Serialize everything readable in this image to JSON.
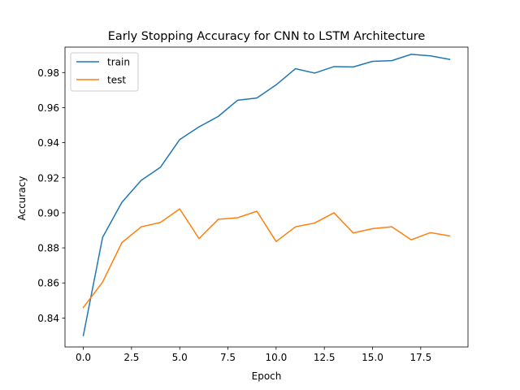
{
  "chart_data": {
    "type": "line",
    "title": "Early Stopping Accuracy for CNN to LSTM Architecture",
    "xlabel": "Epoch",
    "ylabel": "Accuracy",
    "x": [
      0,
      1,
      2,
      3,
      4,
      5,
      6,
      7,
      8,
      9,
      10,
      11,
      12,
      13,
      14,
      15,
      16,
      17,
      18,
      19
    ],
    "xlim": [
      -0.95,
      19.95
    ],
    "ylim": [
      0.8235,
      0.9945
    ],
    "xticks": [
      0.0,
      2.5,
      5.0,
      7.5,
      10.0,
      12.5,
      15.0,
      17.5
    ],
    "xtick_labels": [
      "0.0",
      "2.5",
      "5.0",
      "7.5",
      "10.0",
      "12.5",
      "15.0",
      "17.5"
    ],
    "yticks": [
      0.84,
      0.86,
      0.88,
      0.9,
      0.92,
      0.94,
      0.96,
      0.98
    ],
    "ytick_labels": [
      "0.84",
      "0.86",
      "0.88",
      "0.90",
      "0.92",
      "0.94",
      "0.96",
      "0.98"
    ],
    "grid": false,
    "legend": {
      "position": "top-left"
    },
    "series": [
      {
        "name": "train",
        "color": "#1f77b4",
        "values": [
          0.83,
          0.886,
          0.906,
          0.9185,
          0.926,
          0.9418,
          0.949,
          0.955,
          0.9642,
          0.9655,
          0.973,
          0.9822,
          0.9797,
          0.9834,
          0.9832,
          0.9864,
          0.9868,
          0.9904,
          0.9895,
          0.9875
        ]
      },
      {
        "name": "test",
        "color": "#ff7f0e",
        "values": [
          0.846,
          0.8605,
          0.883,
          0.892,
          0.8945,
          0.9022,
          0.8853,
          0.8963,
          0.8972,
          0.9009,
          0.8836,
          0.892,
          0.8942,
          0.9,
          0.8885,
          0.891,
          0.892,
          0.8846,
          0.8887,
          0.8868
        ]
      }
    ]
  }
}
